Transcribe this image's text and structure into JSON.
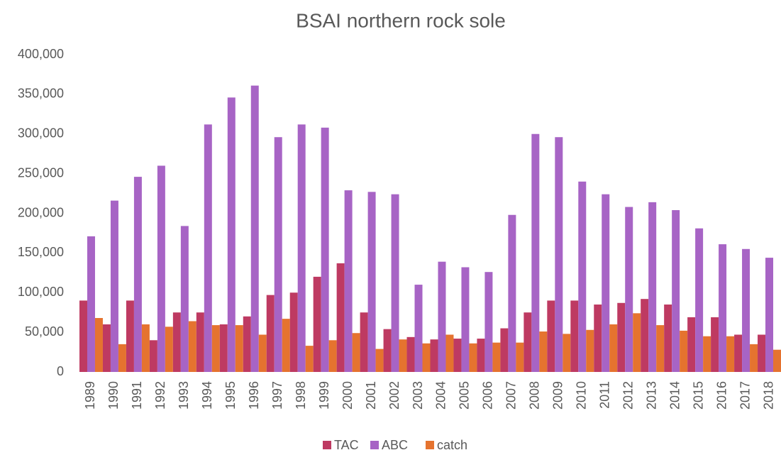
{
  "chart_data": {
    "type": "bar",
    "title": "BSAI northern rock sole",
    "categories": [
      "1989",
      "1990",
      "1991",
      "1992",
      "1993",
      "1994",
      "1995",
      "1996",
      "1997",
      "1998",
      "1999",
      "2000",
      "2001",
      "2002",
      "2003",
      "2004",
      "2005",
      "2006",
      "2007",
      "2008",
      "2009",
      "2010",
      "2011",
      "2012",
      "2013",
      "2014",
      "2015",
      "2016",
      "2017",
      "2018"
    ],
    "series": [
      {
        "name": "TAC",
        "color": "#be3a62",
        "values": [
          90000,
          60000,
          90000,
          40000,
          75000,
          75000,
          60000,
          70000,
          97000,
          100000,
          120000,
          137000,
          75000,
          54000,
          44000,
          41000,
          42000,
          42000,
          55000,
          75000,
          90000,
          90000,
          85000,
          87000,
          92000,
          85000,
          69000,
          69000,
          47000,
          47000
        ]
      },
      {
        "name": "ABC",
        "color": "#a764c5",
        "values": [
          171000,
          216000,
          246000,
          260000,
          184000,
          312000,
          346000,
          361000,
          296000,
          312000,
          308000,
          229000,
          227000,
          224000,
          110000,
          139000,
          132000,
          126000,
          198000,
          300000,
          296000,
          240000,
          224000,
          208000,
          214000,
          204000,
          181000,
          161000,
          155000,
          144000
        ]
      },
      {
        "name": "catch",
        "color": "#e5732f",
        "values": [
          68000,
          35000,
          60000,
          57000,
          64000,
          59000,
          59000,
          47000,
          67000,
          33000,
          40000,
          49000,
          29000,
          41000,
          36000,
          47000,
          36000,
          37000,
          37000,
          51000,
          48000,
          53000,
          60000,
          74000,
          59000,
          52000,
          45000,
          45000,
          35000,
          28000
        ]
      }
    ],
    "ylim": [
      0,
      400000
    ],
    "yticks": [
      0,
      {
        "value": 50000,
        "label": "50,000"
      },
      {
        "value": 100000,
        "label": "100,000"
      },
      {
        "value": 150000,
        "label": "150,000"
      },
      {
        "value": 200000,
        "label": "200,000"
      },
      {
        "value": 250000,
        "label": "250,000"
      },
      {
        "value": 300000,
        "label": "300,000"
      },
      {
        "value": 350000,
        "label": "350,000"
      },
      {
        "value": 400000,
        "label": "400,000"
      }
    ],
    "grid": false,
    "legend": "bottom"
  }
}
